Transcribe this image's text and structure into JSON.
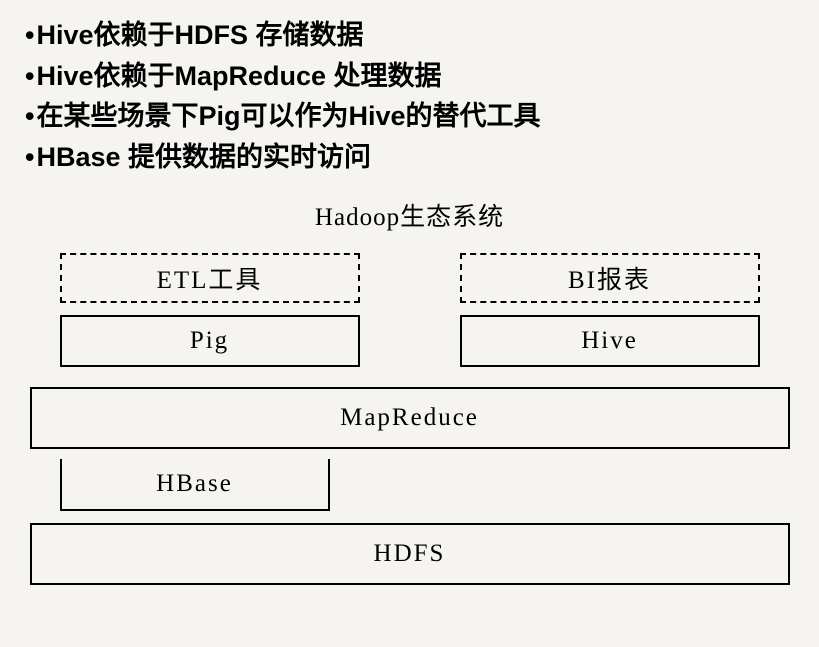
{
  "bullets": {
    "item1": "Hive依赖于HDFS 存储数据",
    "item2": "Hive依赖于MapReduce 处理数据",
    "item3": "在某些场景下Pig可以作为Hive的替代工具",
    "item4": "HBase 提供数据的实时访问"
  },
  "diagram": {
    "title": "Hadoop生态系统",
    "boxes": {
      "etl": "ETL工具",
      "bi": "BI报表",
      "pig": "Pig",
      "hive": "Hive",
      "mapreduce": "MapReduce",
      "hbase": "HBase",
      "hdfs": "HDFS"
    },
    "style": {
      "border_color": "#000000",
      "background_color": "#f5f4f0",
      "font_family": "SimSun",
      "box_font_size": 25,
      "dashed_boxes": [
        "etl",
        "bi"
      ],
      "solid_boxes": [
        "pig",
        "hive",
        "mapreduce",
        "hbase",
        "hdfs"
      ]
    }
  },
  "text_style": {
    "bullet_font_size": 27,
    "bullet_font_weight": "bold",
    "title_font_size": 25
  }
}
